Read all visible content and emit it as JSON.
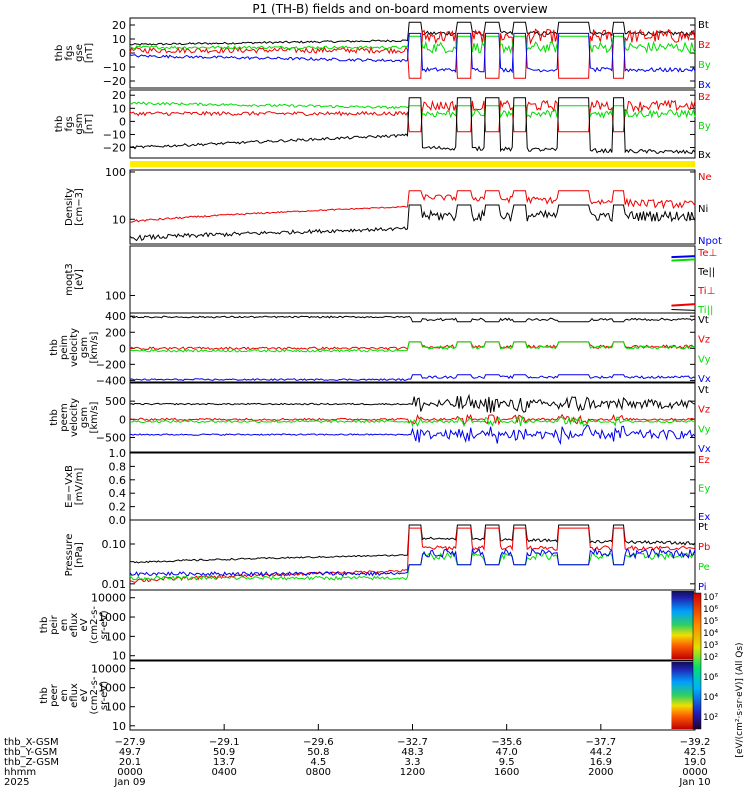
{
  "title": "P1 (TH-B) fields and on-board moments overview",
  "colors": {
    "black": "#000000",
    "red": "#ee0000",
    "green": "#00dd00",
    "blue": "#0000ee",
    "yellow": "#ffee00"
  },
  "chart_data": [
    {
      "id": "p1",
      "type": "line",
      "ylabel_lines": [
        "thb",
        "fgs",
        "gse",
        "[nT]"
      ],
      "ylim": [
        -25,
        25
      ],
      "ytick_values": [
        -20,
        -10,
        0,
        10,
        20
      ],
      "ytick_labels": [
        "−20",
        "−10",
        "0",
        "10",
        "20"
      ],
      "series": [
        {
          "name": "Bt",
          "color": "black"
        },
        {
          "name": "Bz",
          "color": "red"
        },
        {
          "name": "By",
          "color": "green"
        },
        {
          "name": "Bx",
          "color": "blue"
        }
      ]
    },
    {
      "id": "p2",
      "type": "line",
      "ylabel_lines": [
        "thb",
        "fgs",
        "gsm",
        "[nT]"
      ],
      "ylim": [
        -28,
        24
      ],
      "ytick_values": [
        -20,
        -10,
        0,
        10,
        20
      ],
      "ytick_labels": [
        "−20",
        "−10",
        "0",
        "10",
        "20"
      ],
      "series": [
        {
          "name": "Bz",
          "color": "red"
        },
        {
          "name": "By",
          "color": "green"
        },
        {
          "name": "Bx",
          "color": "black"
        }
      ]
    },
    {
      "id": "p3",
      "type": "line",
      "scale": "log",
      "ylabel_lines": [
        "Density",
        "[cm−3]"
      ],
      "ylim": [
        3,
        110
      ],
      "ytick_values": [
        10,
        100
      ],
      "ytick_labels": [
        "10",
        "100"
      ],
      "series": [
        {
          "name": "Ne",
          "color": "red"
        },
        {
          "name": "Ni",
          "color": "black"
        },
        {
          "name": "Npot",
          "color": "blue"
        }
      ]
    },
    {
      "id": "p4",
      "type": "line",
      "scale": "log",
      "ylabel_lines": [
        "moqt3",
        "[eV]"
      ],
      "ylim": [
        30,
        3000
      ],
      "ytick_values": [
        100
      ],
      "ytick_labels": [
        "100"
      ],
      "series": [
        {
          "name": "Te⊥",
          "color": "red"
        },
        {
          "name": "Te||",
          "color": "black"
        },
        {
          "name": "Ti⊥",
          "color": "red"
        },
        {
          "name": "Ti||",
          "color": "green"
        }
      ]
    },
    {
      "id": "p5",
      "type": "line",
      "ylabel_lines": [
        "thb",
        "peim",
        "velocity",
        "gsm",
        "[km/s]"
      ],
      "ylim": [
        -420,
        440
      ],
      "ytick_values": [
        -400,
        -200,
        0,
        200,
        400
      ],
      "ytick_labels": [
        "−400",
        "−200",
        "0",
        "200",
        "400"
      ],
      "series": [
        {
          "name": "Vt",
          "color": "black"
        },
        {
          "name": "Vz",
          "color": "red"
        },
        {
          "name": "Vy",
          "color": "green"
        },
        {
          "name": "Vx",
          "color": "blue"
        }
      ]
    },
    {
      "id": "p6",
      "type": "line",
      "ylabel_lines": [
        "thb",
        "peem",
        "velocity",
        "gsm",
        "[km/s]"
      ],
      "ylim": [
        -900,
        1000
      ],
      "ytick_values": [
        -500,
        0,
        500
      ],
      "ytick_labels": [
        "−500",
        "0",
        "500"
      ],
      "series": [
        {
          "name": "Vt",
          "color": "black"
        },
        {
          "name": "Vz",
          "color": "red"
        },
        {
          "name": "Vy",
          "color": "green"
        },
        {
          "name": "Vx",
          "color": "blue"
        }
      ]
    },
    {
      "id": "p7",
      "type": "line",
      "ylabel_lines": [
        "E=−VxB",
        "[mV/m]"
      ],
      "ylim": [
        0,
        1
      ],
      "ytick_values": [
        0.0,
        0.2,
        0.4,
        0.6,
        0.8,
        1.0
      ],
      "ytick_labels": [
        "0.0",
        "0.2",
        "0.4",
        "0.6",
        "0.8",
        "1.0"
      ],
      "series": [
        {
          "name": "Ez",
          "color": "red"
        },
        {
          "name": "Ey",
          "color": "green"
        },
        {
          "name": "Ex",
          "color": "blue"
        }
      ]
    },
    {
      "id": "p8",
      "type": "line",
      "scale": "log",
      "ylabel_lines": [
        "Pressure",
        "[nPa]"
      ],
      "ylim": [
        0.007,
        0.4
      ],
      "ytick_values": [
        0.01,
        0.1
      ],
      "ytick_labels": [
        "0.01",
        "0.10"
      ],
      "series": [
        {
          "name": "Pt",
          "color": "black"
        },
        {
          "name": "Pb",
          "color": "red"
        },
        {
          "name": "Pe",
          "color": "green"
        },
        {
          "name": "Pi",
          "color": "blue"
        }
      ]
    },
    {
      "id": "p9",
      "type": "heatmap",
      "scale": "log",
      "ylabel_lines": [
        "thb",
        "peir",
        "en",
        "eflux",
        "eV",
        "(cm2-s-",
        "sr-eV)"
      ],
      "ylim": [
        6,
        25000
      ],
      "ytick_values": [
        10,
        100,
        1000,
        10000
      ],
      "ytick_labels": [
        "10",
        "100",
        "1000",
        "10000"
      ]
    },
    {
      "id": "p10",
      "type": "heatmap",
      "scale": "log",
      "ylabel_lines": [
        "thb",
        "peer",
        "en",
        "eflux",
        "eV",
        "(cm2-s-",
        "sr-eV)"
      ],
      "ylim": [
        6,
        25000
      ],
      "ytick_values": [
        10,
        100,
        1000,
        10000
      ],
      "ytick_labels": [
        "10",
        "100",
        "1000",
        "10000"
      ]
    }
  ],
  "colorbar": {
    "label": "[eV/(cm²·s·sr·eV)] (All Qs)",
    "top_ticks": [
      "10⁷",
      "10⁶",
      "10⁵",
      "10⁴",
      "10³",
      "10²"
    ],
    "bottom_ticks": [
      "10⁶",
      "10⁴",
      "10²"
    ]
  },
  "time_axis": {
    "xlim_hours": [
      0,
      24
    ],
    "tick_hours": [
      0,
      4,
      8,
      12,
      16,
      20,
      24
    ],
    "rows": [
      {
        "label": "thb_X-GSM",
        "values": [
          "−27.9",
          "−29.1",
          "−29.6",
          "−32.7",
          "−35.6",
          "−37.7",
          "−39.2"
        ]
      },
      {
        "label": "thb_Y-GSM",
        "values": [
          "49.7",
          "50.9",
          "50.8",
          "48.3",
          "47.0",
          "44.2",
          "42.5"
        ]
      },
      {
        "label": "thb_Z-GSM",
        "values": [
          "20.1",
          "13.7",
          "4.5",
          "3.3",
          "9.5",
          "16.9",
          "19.0"
        ]
      },
      {
        "label": "hhmm",
        "values": [
          "0000",
          "0400",
          "0800",
          "1200",
          "1600",
          "2000",
          "0000"
        ]
      },
      {
        "label": "2025",
        "values": [
          "Jan 09",
          "",
          "",
          "",
          "",
          "",
          "Jan 10"
        ]
      }
    ]
  }
}
